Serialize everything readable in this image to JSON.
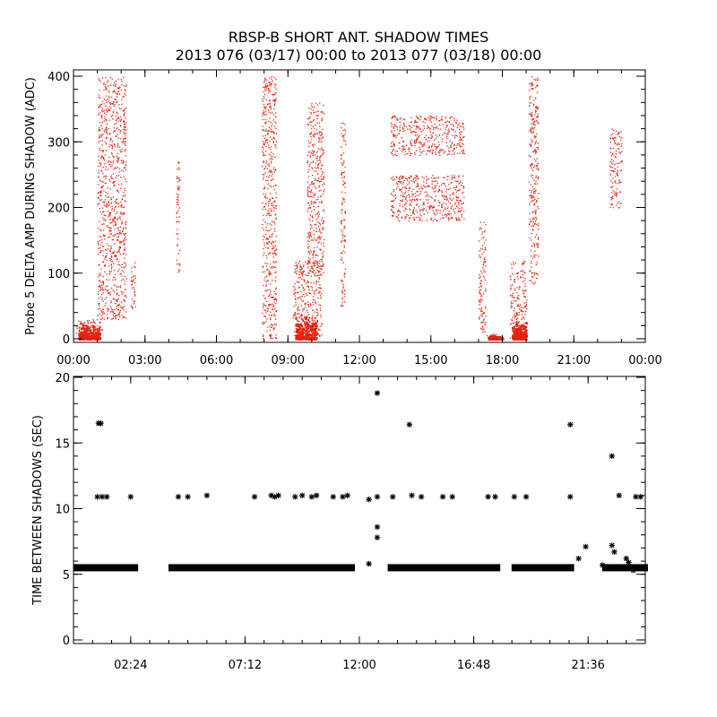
{
  "title_line1": "RBSP-B SHORT ANT. SHADOW TIMES",
  "title_line2": "2013 076 (03/17) 00:00 to 2013 077 (03/18) 00:00",
  "chart_data": [
    {
      "type": "scatter",
      "ylabel": "Probe 5 DELTA AMP DURING SHADOW (ADC)",
      "xlabel": "",
      "x_unit": "hours",
      "xlim": [
        0,
        24
      ],
      "ylim": [
        0,
        400
      ],
      "xtick_labels": [
        "00:00",
        "03:00",
        "06:00",
        "09:00",
        "12:00",
        "15:00",
        "18:00",
        "21:00",
        "00:00"
      ],
      "ytick_labels": [
        "0",
        "100",
        "200",
        "300",
        "400"
      ],
      "marker": "dot",
      "color": "#e8220f",
      "clusters": [
        {
          "x": [
            0.1,
            1.2
          ],
          "y": [
            0,
            30
          ]
        },
        {
          "x": [
            1.0,
            2.2
          ],
          "y": [
            30,
            400
          ]
        },
        {
          "x": [
            2.4,
            2.6
          ],
          "y": [
            40,
            120
          ]
        },
        {
          "x": [
            4.3,
            4.45
          ],
          "y": [
            100,
            270
          ]
        },
        {
          "x": [
            7.9,
            8.5
          ],
          "y": [
            0,
            400
          ]
        },
        {
          "x": [
            9.2,
            10.4
          ],
          "y": [
            0,
            120
          ]
        },
        {
          "x": [
            9.8,
            10.5
          ],
          "y": [
            100,
            360
          ]
        },
        {
          "x": [
            11.2,
            11.4
          ],
          "y": [
            50,
            330
          ]
        },
        {
          "x": [
            13.3,
            16.4
          ],
          "y": [
            280,
            340
          ]
        },
        {
          "x": [
            13.3,
            16.4
          ],
          "y": [
            180,
            250
          ]
        },
        {
          "x": [
            17.0,
            17.3
          ],
          "y": [
            10,
            180
          ]
        },
        {
          "x": [
            17.3,
            18.0
          ],
          "y": [
            0,
            8
          ]
        },
        {
          "x": [
            18.3,
            19.0
          ],
          "y": [
            0,
            120
          ]
        },
        {
          "x": [
            19.1,
            19.5
          ],
          "y": [
            80,
            400
          ]
        },
        {
          "x": [
            22.5,
            23.0
          ],
          "y": [
            200,
            320
          ]
        }
      ]
    },
    {
      "type": "scatter",
      "ylabel": "TIME BETWEEN SHADOWS (SEC)",
      "xlabel": "",
      "x_unit": "hours",
      "xlim": [
        0,
        24
      ],
      "ylim": [
        0,
        20
      ],
      "xtick_labels": [
        "02:24",
        "07:12",
        "12:00",
        "16:48",
        "21:36"
      ],
      "xtick_values": [
        2.4,
        7.2,
        12.0,
        16.8,
        21.6
      ],
      "ytick_labels": [
        "0",
        "5",
        "10",
        "15",
        "20"
      ],
      "marker": "asterisk",
      "color": "#000000",
      "baseline_value": 5.5,
      "baseline_spans": [
        [
          0.1,
          2.6
        ],
        [
          4.1,
          11.7
        ],
        [
          13.3,
          17.8
        ],
        [
          18.5,
          20.9
        ],
        [
          22.3,
          24.0
        ]
      ],
      "points": [
        {
          "x": 1.05,
          "y": 16.5
        },
        {
          "x": 1.15,
          "y": 16.5
        },
        {
          "x": 1.0,
          "y": 10.9
        },
        {
          "x": 1.2,
          "y": 10.9
        },
        {
          "x": 1.4,
          "y": 10.9
        },
        {
          "x": 2.4,
          "y": 10.9
        },
        {
          "x": 4.4,
          "y": 10.9
        },
        {
          "x": 4.8,
          "y": 10.9
        },
        {
          "x": 5.6,
          "y": 11.0
        },
        {
          "x": 7.6,
          "y": 10.9
        },
        {
          "x": 8.3,
          "y": 11.0
        },
        {
          "x": 8.45,
          "y": 10.9
        },
        {
          "x": 8.6,
          "y": 11.0
        },
        {
          "x": 9.3,
          "y": 10.9
        },
        {
          "x": 9.6,
          "y": 11.0
        },
        {
          "x": 10.0,
          "y": 10.9
        },
        {
          "x": 10.2,
          "y": 11.0
        },
        {
          "x": 10.9,
          "y": 10.9
        },
        {
          "x": 11.3,
          "y": 10.9
        },
        {
          "x": 11.5,
          "y": 11.0
        },
        {
          "x": 12.4,
          "y": 10.7
        },
        {
          "x": 12.4,
          "y": 5.8
        },
        {
          "x": 12.75,
          "y": 18.8
        },
        {
          "x": 12.75,
          "y": 10.9
        },
        {
          "x": 12.75,
          "y": 8.6
        },
        {
          "x": 12.75,
          "y": 7.8
        },
        {
          "x": 13.4,
          "y": 10.9
        },
        {
          "x": 14.1,
          "y": 16.4
        },
        {
          "x": 14.2,
          "y": 11.0
        },
        {
          "x": 14.6,
          "y": 10.9
        },
        {
          "x": 15.5,
          "y": 10.9
        },
        {
          "x": 15.9,
          "y": 10.9
        },
        {
          "x": 17.4,
          "y": 10.9
        },
        {
          "x": 17.7,
          "y": 10.9
        },
        {
          "x": 18.5,
          "y": 10.9
        },
        {
          "x": 19.0,
          "y": 10.9
        },
        {
          "x": 20.85,
          "y": 16.4
        },
        {
          "x": 20.85,
          "y": 10.9
        },
        {
          "x": 21.2,
          "y": 6.2
        },
        {
          "x": 21.5,
          "y": 7.1
        },
        {
          "x": 22.2,
          "y": 5.7
        },
        {
          "x": 22.6,
          "y": 14.0
        },
        {
          "x": 22.6,
          "y": 7.2
        },
        {
          "x": 22.7,
          "y": 6.7
        },
        {
          "x": 22.9,
          "y": 11.0
        },
        {
          "x": 23.2,
          "y": 6.2
        },
        {
          "x": 23.3,
          "y": 5.9
        },
        {
          "x": 23.6,
          "y": 10.9
        },
        {
          "x": 23.8,
          "y": 10.9
        },
        {
          "x": 23.5,
          "y": 5.3
        }
      ]
    }
  ]
}
